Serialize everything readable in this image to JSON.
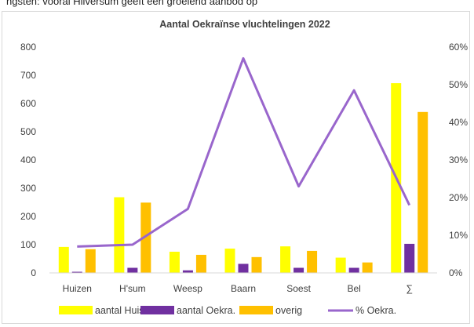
{
  "top_caption": "ngsten: vooral Hilversum geeft een groeiend aanbod op",
  "chart_data": {
    "type": "bar",
    "title": "Aantal Oekraïnse vluchtelingen 2022",
    "categories": [
      "Huizen",
      "H'sum",
      "Weesp",
      "Baarn",
      "Soest",
      "Bel",
      "∑"
    ],
    "series": [
      {
        "name": "aantal Huish.",
        "axis": "left",
        "type": "bar",
        "color": "#FFFF00",
        "values": [
          92,
          268,
          75,
          86,
          94,
          54,
          672
        ]
      },
      {
        "name": "aantal Oekra.",
        "axis": "left",
        "type": "bar",
        "color": "#7030A0",
        "values": [
          4,
          18,
          9,
          32,
          18,
          18,
          103
        ]
      },
      {
        "name": "overig",
        "axis": "left",
        "type": "bar",
        "color": "#FFC000",
        "values": [
          84,
          249,
          64,
          56,
          78,
          37,
          570
        ]
      },
      {
        "name": "% Oekra.",
        "axis": "right",
        "type": "line",
        "color": "#9966CC",
        "values": [
          0.07,
          0.075,
          0.17,
          0.57,
          0.23,
          0.485,
          0.18
        ]
      }
    ],
    "y_left": {
      "min": 0,
      "max": 800,
      "ticks": [
        "0",
        "100",
        "200",
        "300",
        "400",
        "500",
        "600",
        "700",
        "800"
      ]
    },
    "y_right": {
      "min": 0,
      "max": 0.6,
      "ticks": [
        "0%",
        "10%",
        "20%",
        "30%",
        "40%",
        "50%",
        "60%"
      ]
    },
    "grid": false,
    "legend_position": "bottom"
  }
}
